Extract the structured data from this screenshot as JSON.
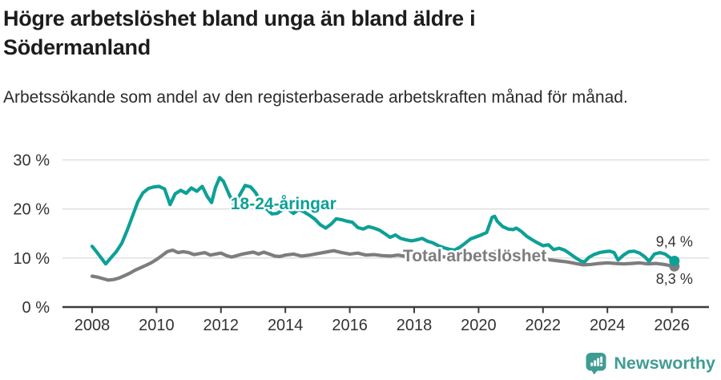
{
  "title": "Högre arbetslöshet bland unga än bland äldre i Södermanland",
  "subtitle": "Arbetssökande som andel av den registerbaserade arbetskraften månad för månad.",
  "footer": {
    "brand": "Newsworthy",
    "logo_icon": "bar-chart-speech-bubble"
  },
  "colors": {
    "young": "#0da096",
    "total": "#7d7d7d",
    "brand": "#3f9c94",
    "axis": "#3c3c3c",
    "grid": "#dcdcdc",
    "tick_text": "#333333"
  },
  "chart_data": {
    "type": "line",
    "title": "Högre arbetslöshet bland unga än bland äldre i Södermanland",
    "xlabel": "",
    "ylabel": "Arbetssökande som andel av den registerbaserade arbetskraften",
    "xlim": [
      2007.1,
      2027.15
    ],
    "ylim": [
      0,
      30
    ],
    "grid": "horizontal",
    "legend_position": "inline-labels",
    "x_ticks": [
      2008,
      2010,
      2012,
      2014,
      2016,
      2018,
      2020,
      2022,
      2024,
      2026
    ],
    "y_ticks": [
      {
        "value": 0,
        "label": "0 %"
      },
      {
        "value": 10,
        "label": "10 %"
      },
      {
        "value": 20,
        "label": "20 %"
      },
      {
        "value": 30,
        "label": "30 %"
      }
    ],
    "series": [
      {
        "name": "18-24-åringar",
        "color": "#0da096",
        "end_label": "9,4 %",
        "end_label_dy": -18,
        "label_pos": {
          "x": 2012.3,
          "y": 19.95
        },
        "points": [
          [
            2008.0,
            12.4
          ],
          [
            2008.17,
            11.0
          ],
          [
            2008.42,
            8.8
          ],
          [
            2008.58,
            10.0
          ],
          [
            2008.75,
            11.3
          ],
          [
            2008.92,
            13.0
          ],
          [
            2009.08,
            15.5
          ],
          [
            2009.25,
            18.5
          ],
          [
            2009.42,
            21.5
          ],
          [
            2009.58,
            23.3
          ],
          [
            2009.75,
            24.2
          ],
          [
            2009.92,
            24.5
          ],
          [
            2010.08,
            24.6
          ],
          [
            2010.25,
            24.1
          ],
          [
            2010.42,
            20.9
          ],
          [
            2010.58,
            23.1
          ],
          [
            2010.75,
            23.8
          ],
          [
            2010.92,
            23.2
          ],
          [
            2011.08,
            24.3
          ],
          [
            2011.25,
            23.6
          ],
          [
            2011.42,
            24.6
          ],
          [
            2011.58,
            22.5
          ],
          [
            2011.71,
            21.3
          ],
          [
            2011.83,
            24.4
          ],
          [
            2011.96,
            26.4
          ],
          [
            2012.08,
            25.6
          ],
          [
            2012.25,
            23.0
          ],
          [
            2012.42,
            20.7
          ],
          [
            2012.58,
            22.8
          ],
          [
            2012.75,
            24.8
          ],
          [
            2012.92,
            24.5
          ],
          [
            2013.08,
            23.3
          ],
          [
            2013.25,
            21.2
          ],
          [
            2013.42,
            20.0
          ],
          [
            2013.58,
            19.0
          ],
          [
            2013.75,
            19.1
          ],
          [
            2013.92,
            19.9
          ],
          [
            2014.08,
            20.0
          ],
          [
            2014.25,
            19.1
          ],
          [
            2014.42,
            19.9
          ],
          [
            2014.58,
            19.4
          ],
          [
            2014.75,
            18.7
          ],
          [
            2014.92,
            17.9
          ],
          [
            2015.08,
            16.8
          ],
          [
            2015.25,
            16.1
          ],
          [
            2015.42,
            16.9
          ],
          [
            2015.58,
            18.0
          ],
          [
            2015.75,
            17.8
          ],
          [
            2015.92,
            17.5
          ],
          [
            2016.08,
            17.3
          ],
          [
            2016.25,
            16.2
          ],
          [
            2016.42,
            15.9
          ],
          [
            2016.58,
            16.4
          ],
          [
            2016.75,
            16.1
          ],
          [
            2016.92,
            15.7
          ],
          [
            2017.08,
            15.0
          ],
          [
            2017.25,
            14.2
          ],
          [
            2017.42,
            14.7
          ],
          [
            2017.58,
            14.0
          ],
          [
            2017.75,
            13.7
          ],
          [
            2017.92,
            13.5
          ],
          [
            2018.08,
            13.7
          ],
          [
            2018.25,
            14.0
          ],
          [
            2018.42,
            13.4
          ],
          [
            2018.58,
            13.1
          ],
          [
            2018.75,
            12.5
          ],
          [
            2018.92,
            12.1
          ],
          [
            2019.08,
            11.8
          ],
          [
            2019.25,
            11.6
          ],
          [
            2019.42,
            12.2
          ],
          [
            2019.58,
            13.0
          ],
          [
            2019.75,
            13.9
          ],
          [
            2019.92,
            14.3
          ],
          [
            2020.08,
            14.7
          ],
          [
            2020.25,
            15.2
          ],
          [
            2020.42,
            18.3
          ],
          [
            2020.5,
            18.5
          ],
          [
            2020.58,
            17.5
          ],
          [
            2020.75,
            16.4
          ],
          [
            2020.92,
            15.9
          ],
          [
            2021.08,
            15.8
          ],
          [
            2021.17,
            16.1
          ],
          [
            2021.33,
            15.4
          ],
          [
            2021.5,
            14.4
          ],
          [
            2021.67,
            13.7
          ],
          [
            2021.83,
            13.1
          ],
          [
            2022.0,
            12.5
          ],
          [
            2022.17,
            12.7
          ],
          [
            2022.33,
            11.7
          ],
          [
            2022.5,
            12.0
          ],
          [
            2022.67,
            11.6
          ],
          [
            2022.83,
            10.9
          ],
          [
            2023.0,
            10.1
          ],
          [
            2023.17,
            9.4
          ],
          [
            2023.29,
            9.2
          ],
          [
            2023.42,
            10.1
          ],
          [
            2023.58,
            10.7
          ],
          [
            2023.75,
            11.1
          ],
          [
            2023.92,
            11.3
          ],
          [
            2024.08,
            11.4
          ],
          [
            2024.21,
            11.1
          ],
          [
            2024.33,
            9.6
          ],
          [
            2024.5,
            10.6
          ],
          [
            2024.67,
            11.3
          ],
          [
            2024.83,
            11.4
          ],
          [
            2025.0,
            11.0
          ],
          [
            2025.17,
            10.2
          ],
          [
            2025.29,
            9.3
          ],
          [
            2025.46,
            10.8
          ],
          [
            2025.63,
            11.1
          ],
          [
            2025.79,
            10.8
          ],
          [
            2025.96,
            10.0
          ],
          [
            2026.08,
            9.4
          ]
        ]
      },
      {
        "name": "Total arbetslöshet",
        "color": "#7d7d7d",
        "end_label": "8,3 %",
        "end_label_dy": 22,
        "label_pos": {
          "x": 2017.65,
          "y": 9.32
        },
        "points": [
          [
            2008.0,
            6.3
          ],
          [
            2008.17,
            6.1
          ],
          [
            2008.33,
            5.8
          ],
          [
            2008.5,
            5.5
          ],
          [
            2008.67,
            5.6
          ],
          [
            2008.83,
            5.9
          ],
          [
            2009.0,
            6.4
          ],
          [
            2009.17,
            6.9
          ],
          [
            2009.33,
            7.5
          ],
          [
            2009.5,
            8.0
          ],
          [
            2009.67,
            8.5
          ],
          [
            2009.83,
            9.0
          ],
          [
            2010.0,
            9.7
          ],
          [
            2010.17,
            10.5
          ],
          [
            2010.33,
            11.3
          ],
          [
            2010.5,
            11.6
          ],
          [
            2010.67,
            11.1
          ],
          [
            2010.83,
            11.3
          ],
          [
            2011.0,
            11.1
          ],
          [
            2011.17,
            10.7
          ],
          [
            2011.33,
            10.9
          ],
          [
            2011.5,
            11.1
          ],
          [
            2011.67,
            10.6
          ],
          [
            2011.83,
            10.8
          ],
          [
            2012.0,
            11.0
          ],
          [
            2012.17,
            10.5
          ],
          [
            2012.33,
            10.2
          ],
          [
            2012.5,
            10.5
          ],
          [
            2012.67,
            10.8
          ],
          [
            2012.83,
            11.0
          ],
          [
            2013.0,
            11.2
          ],
          [
            2013.17,
            10.8
          ],
          [
            2013.33,
            11.2
          ],
          [
            2013.5,
            10.8
          ],
          [
            2013.67,
            10.4
          ],
          [
            2013.83,
            10.3
          ],
          [
            2014.0,
            10.6
          ],
          [
            2014.25,
            10.8
          ],
          [
            2014.5,
            10.4
          ],
          [
            2014.75,
            10.6
          ],
          [
            2015.0,
            10.9
          ],
          [
            2015.25,
            11.2
          ],
          [
            2015.5,
            11.5
          ],
          [
            2015.75,
            11.1
          ],
          [
            2016.0,
            10.8
          ],
          [
            2016.25,
            11.0
          ],
          [
            2016.5,
            10.6
          ],
          [
            2016.75,
            10.7
          ],
          [
            2017.0,
            10.5
          ],
          [
            2017.25,
            10.4
          ],
          [
            2017.5,
            10.6
          ],
          [
            2017.75,
            10.3
          ],
          [
            2018.0,
            10.4
          ],
          [
            2018.25,
            10.2
          ],
          [
            2018.5,
            10.4
          ],
          [
            2018.75,
            10.3
          ],
          [
            2019.0,
            10.2
          ],
          [
            2019.25,
            10.0
          ],
          [
            2019.5,
            10.1
          ],
          [
            2019.75,
            10.2
          ],
          [
            2020.0,
            10.4
          ],
          [
            2020.25,
            10.9
          ],
          [
            2020.5,
            11.3
          ],
          [
            2020.75,
            11.1
          ],
          [
            2021.0,
            10.8
          ],
          [
            2021.25,
            10.5
          ],
          [
            2021.5,
            10.2
          ],
          [
            2021.75,
            10.0
          ],
          [
            2022.0,
            9.8
          ],
          [
            2022.25,
            9.6
          ],
          [
            2022.5,
            9.4
          ],
          [
            2022.75,
            9.2
          ],
          [
            2023.0,
            8.9
          ],
          [
            2023.25,
            8.6
          ],
          [
            2023.5,
            8.7
          ],
          [
            2023.75,
            8.9
          ],
          [
            2024.0,
            9.0
          ],
          [
            2024.25,
            8.9
          ],
          [
            2024.5,
            8.8
          ],
          [
            2024.75,
            8.9
          ],
          [
            2025.0,
            9.0
          ],
          [
            2025.25,
            8.8
          ],
          [
            2025.5,
            8.9
          ],
          [
            2025.75,
            8.7
          ],
          [
            2026.08,
            8.3
          ]
        ]
      }
    ]
  }
}
